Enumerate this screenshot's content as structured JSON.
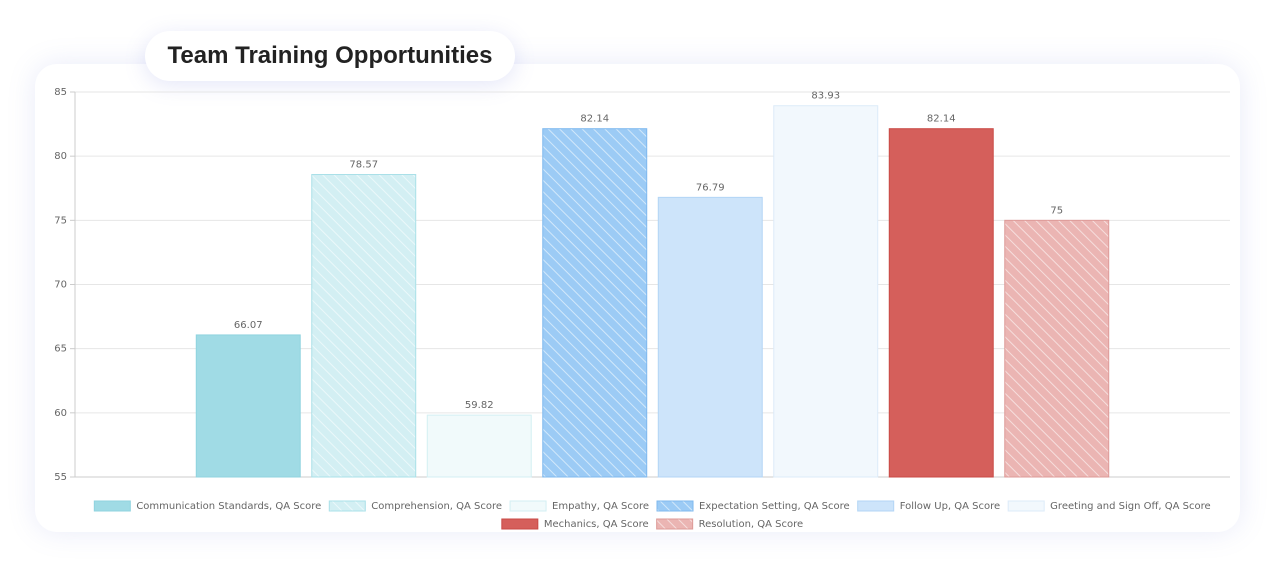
{
  "chart_data": {
    "type": "bar",
    "title": "Team Training Opportunities",
    "categories": [
      null
    ],
    "ylim": [
      55,
      85
    ],
    "yticks": [
      55,
      60,
      65,
      70,
      75,
      80,
      85
    ],
    "grid": true,
    "legend": "bottom",
    "value_labels_shown": true,
    "series": [
      {
        "name": "Communication Standards, QA Score",
        "color": "#a0dbe5",
        "border_color": "#8fd3df",
        "hatched": false,
        "values": [
          66.07
        ]
      },
      {
        "name": "Comprehension, QA Score",
        "color": "#d3eff3",
        "border_color": "#a9e0e8",
        "hatched": true,
        "values": [
          78.57
        ]
      },
      {
        "name": "Empathy, QA Score",
        "color": "#f1fafb",
        "border_color": "#d3eff3",
        "hatched": false,
        "values": [
          59.82
        ]
      },
      {
        "name": "Expectation Setting, QA Score",
        "color": "#9ccbf5",
        "border_color": "#7fb9ee",
        "hatched": true,
        "values": [
          82.14
        ]
      },
      {
        "name": "Follow Up, QA Score",
        "color": "#cde4fa",
        "border_color": "#b3d5f5",
        "hatched": false,
        "values": [
          76.79
        ]
      },
      {
        "name": "Greeting and Sign Off, QA Score",
        "color": "#f2f8fd",
        "border_color": "#dcebf9",
        "hatched": false,
        "values": [
          83.93
        ]
      },
      {
        "name": "Mechanics, QA Score",
        "color": "#d55f5b",
        "border_color": "#c94a46",
        "hatched": false,
        "values": [
          82.14
        ]
      },
      {
        "name": "Resolution, QA Score",
        "color": "#ebb5b3",
        "border_color": "#dd9a97",
        "hatched": true,
        "values": [
          75
        ]
      }
    ]
  }
}
